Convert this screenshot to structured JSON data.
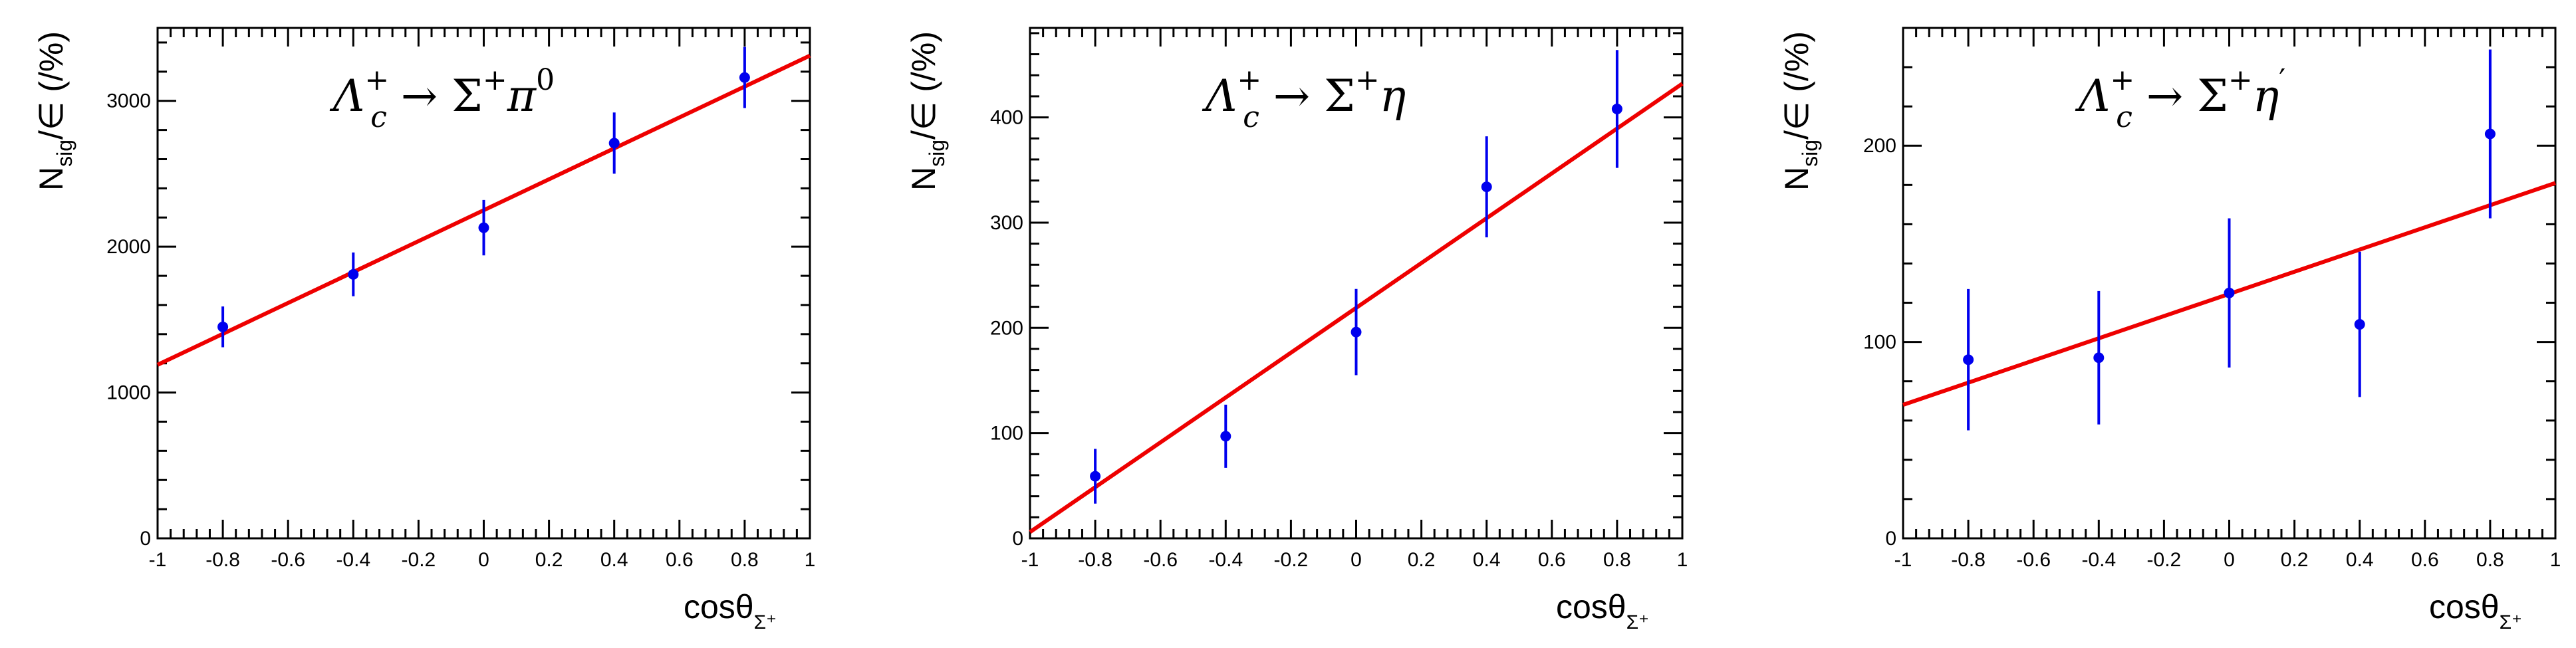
{
  "chart_data": [
    {
      "type": "scatter",
      "process": {
        "parent": "Λ",
        "parent_sub": "c",
        "parent_sup": "+",
        "arrow": "→",
        "daughter": "Σ",
        "daughter_sup": "+",
        "meson": "π",
        "meson_sup": "0"
      },
      "xlabel": "cosθ",
      "xlabel_sub": "Σ⁺",
      "ylabel": "N",
      "ylabel_sub": "sig",
      "ylabel_rest": "/∈ (/%)",
      "xlim": [
        -1,
        1
      ],
      "ylim": [
        0,
        3500
      ],
      "xticks": [
        -1,
        -0.8,
        -0.6,
        -0.4,
        -0.2,
        0,
        0.2,
        0.4,
        0.6,
        0.8,
        1
      ],
      "xtick_labels": [
        "-1",
        "-0.8",
        "-0.6",
        "-0.4",
        "-0.2",
        "0",
        "0.2",
        "0.4",
        "0.6",
        "0.8",
        "1"
      ],
      "yticks": [
        0,
        1000,
        2000,
        3000
      ],
      "ytick_labels": [
        "0",
        "1000",
        "2000",
        "3000"
      ],
      "points": [
        {
          "x": -0.8,
          "y": 1450,
          "err": 140
        },
        {
          "x": -0.4,
          "y": 1810,
          "err": 150
        },
        {
          "x": 0.0,
          "y": 2130,
          "err": 190
        },
        {
          "x": 0.4,
          "y": 2710,
          "err": 210
        },
        {
          "x": 0.8,
          "y": 3160,
          "err": 210
        }
      ],
      "fit": {
        "x": [
          -1,
          1
        ],
        "y": [
          1190,
          3310
        ]
      },
      "point_color": "#0000ee",
      "fit_color": "#ee0000"
    },
    {
      "type": "scatter",
      "process": {
        "parent": "Λ",
        "parent_sub": "c",
        "parent_sup": "+",
        "arrow": "→",
        "daughter": "Σ",
        "daughter_sup": "+",
        "meson": "η",
        "meson_sup": ""
      },
      "xlabel": "cosθ",
      "xlabel_sub": "Σ⁺",
      "ylabel": "N",
      "ylabel_sub": "sig",
      "ylabel_rest": "/∈ (/%)",
      "xlim": [
        -1,
        1
      ],
      "ylim": [
        0,
        485
      ],
      "xticks": [
        -1,
        -0.8,
        -0.6,
        -0.4,
        -0.2,
        0,
        0.2,
        0.4,
        0.6,
        0.8,
        1
      ],
      "xtick_labels": [
        "-1",
        "-0.8",
        "-0.6",
        "-0.4",
        "-0.2",
        "0",
        "0.2",
        "0.4",
        "0.6",
        "0.8",
        "1"
      ],
      "yticks": [
        0,
        100,
        200,
        300,
        400
      ],
      "ytick_labels": [
        "0",
        "100",
        "200",
        "300",
        "400"
      ],
      "points": [
        {
          "x": -0.8,
          "y": 59,
          "err": 26
        },
        {
          "x": -0.4,
          "y": 97,
          "err": 30
        },
        {
          "x": 0.0,
          "y": 196,
          "err": 41
        },
        {
          "x": 0.4,
          "y": 334,
          "err": 48
        },
        {
          "x": 0.8,
          "y": 408,
          "err": 56
        }
      ],
      "fit": {
        "x": [
          -1,
          1
        ],
        "y": [
          6,
          432
        ]
      },
      "point_color": "#0000ee",
      "fit_color": "#ee0000"
    },
    {
      "type": "scatter",
      "process": {
        "parent": "Λ",
        "parent_sub": "c",
        "parent_sup": "+",
        "arrow": "→",
        "daughter": "Σ",
        "daughter_sup": "+",
        "meson": "η",
        "meson_sup": "′"
      },
      "xlabel": "cosθ",
      "xlabel_sub": "Σ⁺",
      "ylabel": "N",
      "ylabel_sub": "sig",
      "ylabel_rest": "/∈ (/%)",
      "xlim": [
        -1,
        1
      ],
      "ylim": [
        0,
        260
      ],
      "xticks": [
        -1,
        -0.8,
        -0.6,
        -0.4,
        -0.2,
        0,
        0.2,
        0.4,
        0.6,
        0.8,
        1
      ],
      "xtick_labels": [
        "-1",
        "-0.8",
        "-0.6",
        "-0.4",
        "-0.2",
        "0",
        "0.2",
        "0.4",
        "0.6",
        "0.8",
        "1"
      ],
      "yticks": [
        0,
        100,
        200
      ],
      "ytick_labels": [
        "0",
        "100",
        "200"
      ],
      "points": [
        {
          "x": -0.8,
          "y": 91,
          "err": 36
        },
        {
          "x": -0.4,
          "y": 92,
          "err": 34
        },
        {
          "x": 0.0,
          "y": 125,
          "err": 38
        },
        {
          "x": 0.4,
          "y": 109,
          "err": 37
        },
        {
          "x": 0.8,
          "y": 206,
          "err": 43
        }
      ],
      "fit": {
        "x": [
          -1,
          1
        ],
        "y": [
          68,
          181
        ]
      },
      "point_color": "#0000ee",
      "fit_color": "#ee0000"
    }
  ]
}
